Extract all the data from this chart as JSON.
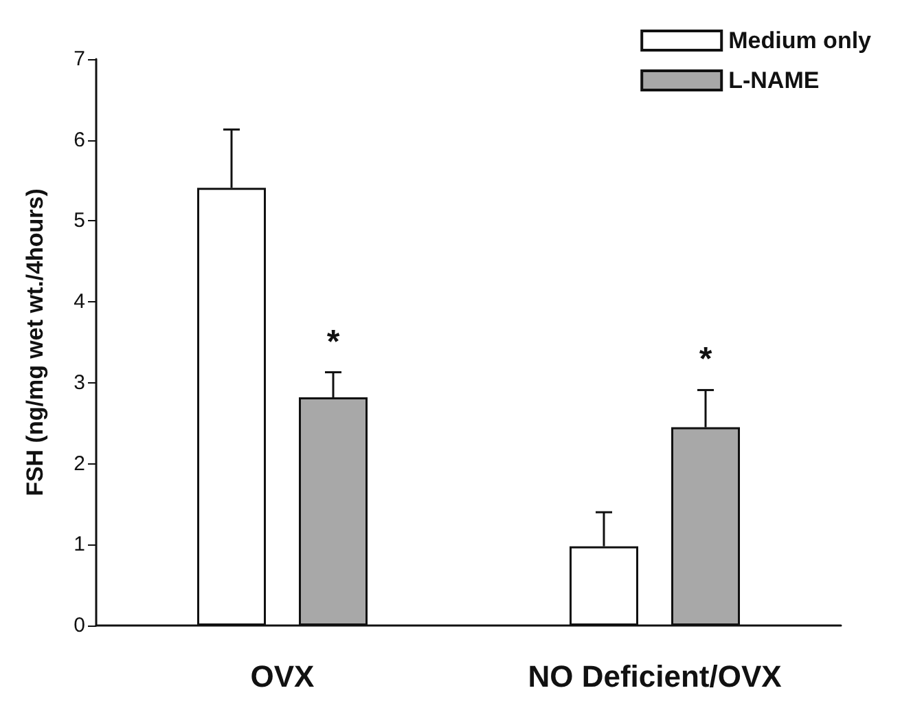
{
  "chart_data": {
    "type": "bar",
    "ylabel": "FSH (ng/mg wet wt./4hours)",
    "categories": [
      "OVX",
      "NO Deficient/OVX"
    ],
    "series": [
      {
        "name": "Medium only",
        "color": "#ffffff",
        "values": [
          5.41,
          0.98
        ],
        "errors": [
          [
            5.41,
            6.13
          ],
          [
            0.98,
            1.4
          ]
        ]
      },
      {
        "name": "L-NAME",
        "color": "#a8a8a8",
        "values": [
          2.82,
          2.45
        ],
        "errors": [
          [
            2.82,
            3.13
          ],
          [
            2.45,
            2.91
          ]
        ]
      }
    ],
    "ylim": [
      0,
      7
    ],
    "yticks": [
      0,
      1,
      2,
      3,
      4,
      5,
      6,
      7
    ],
    "grid": false,
    "legend": "top right",
    "annotations": [
      "*",
      "*"
    ]
  }
}
